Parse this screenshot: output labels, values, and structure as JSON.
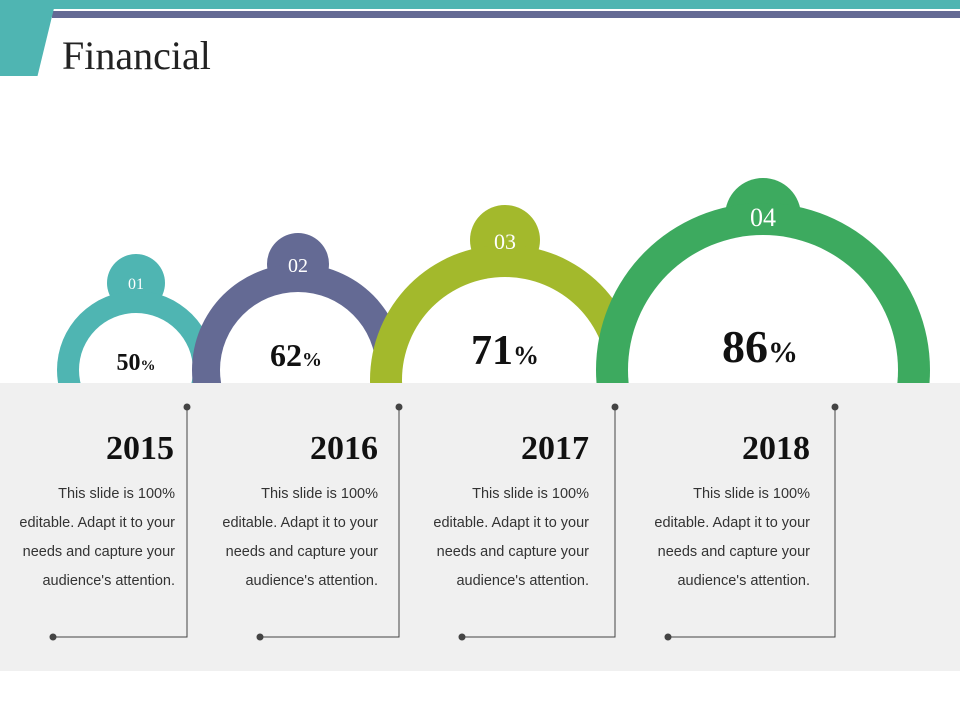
{
  "slide": {
    "title": "Financial"
  },
  "colors": {
    "teal": "#4fb5b2",
    "slate": "#646a94",
    "olive": "#a3b92c",
    "green": "#3daa5f",
    "panel": "#f0f0f0"
  },
  "items": [
    {
      "number": "01",
      "value": "50",
      "unit": "%",
      "year": "2015",
      "description": "This slide is 100% editable. Adapt it to your needs and capture your audience's attention."
    },
    {
      "number": "02",
      "value": "62",
      "unit": "%",
      "year": "2016",
      "description": "This slide is 100% editable. Adapt it to your needs and capture your audience's attention."
    },
    {
      "number": "03",
      "value": "71",
      "unit": "%",
      "year": "2017",
      "description": "This slide is 100% editable. Adapt it to your needs and capture your audience's attention."
    },
    {
      "number": "04",
      "value": "86",
      "unit": "%",
      "year": "2018",
      "description": "This slide is 100% editable. Adapt it to your needs and capture your audience's attention."
    }
  ]
}
